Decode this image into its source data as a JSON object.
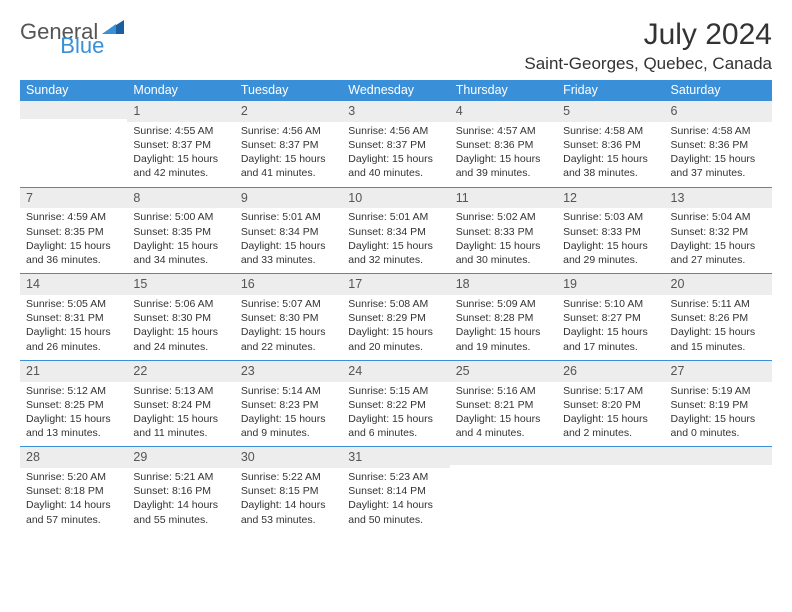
{
  "brand": {
    "text1": "General",
    "text2": "Blue"
  },
  "title": "July 2024",
  "location": "Saint-Georges, Quebec, Canada",
  "columns": [
    "Sunday",
    "Monday",
    "Tuesday",
    "Wednesday",
    "Thursday",
    "Friday",
    "Saturday"
  ],
  "colors": {
    "header_bg": "#3a8fd9",
    "header_text": "#ffffff",
    "daynum_bg": "#ededed",
    "border": "#3a8fd9",
    "text": "#333333"
  },
  "weeks": [
    [
      {
        "n": "",
        "sr": "",
        "ss": "",
        "dl": ""
      },
      {
        "n": "1",
        "sr": "Sunrise: 4:55 AM",
        "ss": "Sunset: 8:37 PM",
        "dl": "Daylight: 15 hours and 42 minutes."
      },
      {
        "n": "2",
        "sr": "Sunrise: 4:56 AM",
        "ss": "Sunset: 8:37 PM",
        "dl": "Daylight: 15 hours and 41 minutes."
      },
      {
        "n": "3",
        "sr": "Sunrise: 4:56 AM",
        "ss": "Sunset: 8:37 PM",
        "dl": "Daylight: 15 hours and 40 minutes."
      },
      {
        "n": "4",
        "sr": "Sunrise: 4:57 AM",
        "ss": "Sunset: 8:36 PM",
        "dl": "Daylight: 15 hours and 39 minutes."
      },
      {
        "n": "5",
        "sr": "Sunrise: 4:58 AM",
        "ss": "Sunset: 8:36 PM",
        "dl": "Daylight: 15 hours and 38 minutes."
      },
      {
        "n": "6",
        "sr": "Sunrise: 4:58 AM",
        "ss": "Sunset: 8:36 PM",
        "dl": "Daylight: 15 hours and 37 minutes."
      }
    ],
    [
      {
        "n": "7",
        "sr": "Sunrise: 4:59 AM",
        "ss": "Sunset: 8:35 PM",
        "dl": "Daylight: 15 hours and 36 minutes."
      },
      {
        "n": "8",
        "sr": "Sunrise: 5:00 AM",
        "ss": "Sunset: 8:35 PM",
        "dl": "Daylight: 15 hours and 34 minutes."
      },
      {
        "n": "9",
        "sr": "Sunrise: 5:01 AM",
        "ss": "Sunset: 8:34 PM",
        "dl": "Daylight: 15 hours and 33 minutes."
      },
      {
        "n": "10",
        "sr": "Sunrise: 5:01 AM",
        "ss": "Sunset: 8:34 PM",
        "dl": "Daylight: 15 hours and 32 minutes."
      },
      {
        "n": "11",
        "sr": "Sunrise: 5:02 AM",
        "ss": "Sunset: 8:33 PM",
        "dl": "Daylight: 15 hours and 30 minutes."
      },
      {
        "n": "12",
        "sr": "Sunrise: 5:03 AM",
        "ss": "Sunset: 8:33 PM",
        "dl": "Daylight: 15 hours and 29 minutes."
      },
      {
        "n": "13",
        "sr": "Sunrise: 5:04 AM",
        "ss": "Sunset: 8:32 PM",
        "dl": "Daylight: 15 hours and 27 minutes."
      }
    ],
    [
      {
        "n": "14",
        "sr": "Sunrise: 5:05 AM",
        "ss": "Sunset: 8:31 PM",
        "dl": "Daylight: 15 hours and 26 minutes."
      },
      {
        "n": "15",
        "sr": "Sunrise: 5:06 AM",
        "ss": "Sunset: 8:30 PM",
        "dl": "Daylight: 15 hours and 24 minutes."
      },
      {
        "n": "16",
        "sr": "Sunrise: 5:07 AM",
        "ss": "Sunset: 8:30 PM",
        "dl": "Daylight: 15 hours and 22 minutes."
      },
      {
        "n": "17",
        "sr": "Sunrise: 5:08 AM",
        "ss": "Sunset: 8:29 PM",
        "dl": "Daylight: 15 hours and 20 minutes."
      },
      {
        "n": "18",
        "sr": "Sunrise: 5:09 AM",
        "ss": "Sunset: 8:28 PM",
        "dl": "Daylight: 15 hours and 19 minutes."
      },
      {
        "n": "19",
        "sr": "Sunrise: 5:10 AM",
        "ss": "Sunset: 8:27 PM",
        "dl": "Daylight: 15 hours and 17 minutes."
      },
      {
        "n": "20",
        "sr": "Sunrise: 5:11 AM",
        "ss": "Sunset: 8:26 PM",
        "dl": "Daylight: 15 hours and 15 minutes."
      }
    ],
    [
      {
        "n": "21",
        "sr": "Sunrise: 5:12 AM",
        "ss": "Sunset: 8:25 PM",
        "dl": "Daylight: 15 hours and 13 minutes."
      },
      {
        "n": "22",
        "sr": "Sunrise: 5:13 AM",
        "ss": "Sunset: 8:24 PM",
        "dl": "Daylight: 15 hours and 11 minutes."
      },
      {
        "n": "23",
        "sr": "Sunrise: 5:14 AM",
        "ss": "Sunset: 8:23 PM",
        "dl": "Daylight: 15 hours and 9 minutes."
      },
      {
        "n": "24",
        "sr": "Sunrise: 5:15 AM",
        "ss": "Sunset: 8:22 PM",
        "dl": "Daylight: 15 hours and 6 minutes."
      },
      {
        "n": "25",
        "sr": "Sunrise: 5:16 AM",
        "ss": "Sunset: 8:21 PM",
        "dl": "Daylight: 15 hours and 4 minutes."
      },
      {
        "n": "26",
        "sr": "Sunrise: 5:17 AM",
        "ss": "Sunset: 8:20 PM",
        "dl": "Daylight: 15 hours and 2 minutes."
      },
      {
        "n": "27",
        "sr": "Sunrise: 5:19 AM",
        "ss": "Sunset: 8:19 PM",
        "dl": "Daylight: 15 hours and 0 minutes."
      }
    ],
    [
      {
        "n": "28",
        "sr": "Sunrise: 5:20 AM",
        "ss": "Sunset: 8:18 PM",
        "dl": "Daylight: 14 hours and 57 minutes."
      },
      {
        "n": "29",
        "sr": "Sunrise: 5:21 AM",
        "ss": "Sunset: 8:16 PM",
        "dl": "Daylight: 14 hours and 55 minutes."
      },
      {
        "n": "30",
        "sr": "Sunrise: 5:22 AM",
        "ss": "Sunset: 8:15 PM",
        "dl": "Daylight: 14 hours and 53 minutes."
      },
      {
        "n": "31",
        "sr": "Sunrise: 5:23 AM",
        "ss": "Sunset: 8:14 PM",
        "dl": "Daylight: 14 hours and 50 minutes."
      },
      {
        "n": "",
        "sr": "",
        "ss": "",
        "dl": ""
      },
      {
        "n": "",
        "sr": "",
        "ss": "",
        "dl": ""
      },
      {
        "n": "",
        "sr": "",
        "ss": "",
        "dl": ""
      }
    ]
  ]
}
